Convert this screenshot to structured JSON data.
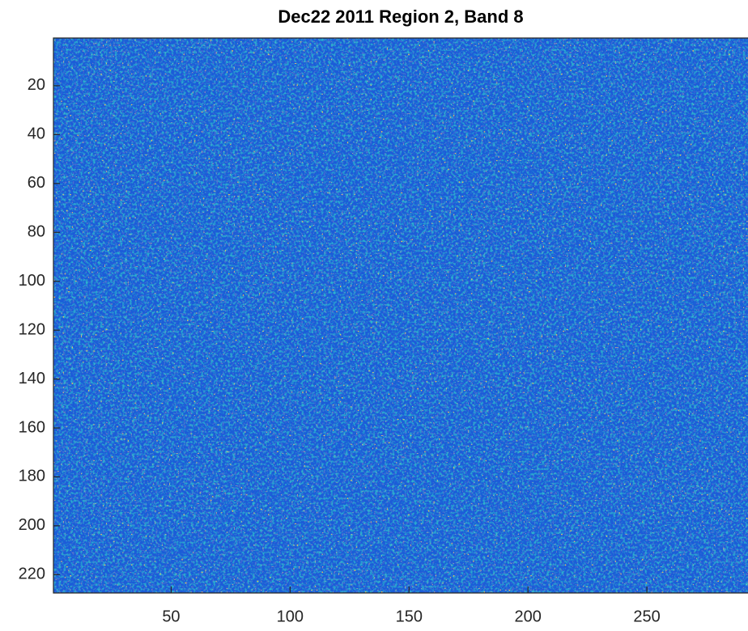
{
  "chart_data": {
    "type": "heatmap",
    "title": "Dec22 2011 Region 2, Band 8",
    "xlim": [
      0.5,
      292.5
    ],
    "ylim": [
      0.5,
      227.5
    ],
    "y_reversed": true,
    "xticks": [
      50,
      100,
      150,
      200,
      250
    ],
    "yticks": [
      20,
      40,
      60,
      80,
      100,
      120,
      140,
      160,
      180,
      200,
      220
    ],
    "colormap": [
      "#1f5cd8",
      "#2fb5cc",
      "#f2d22a"
    ]
  }
}
